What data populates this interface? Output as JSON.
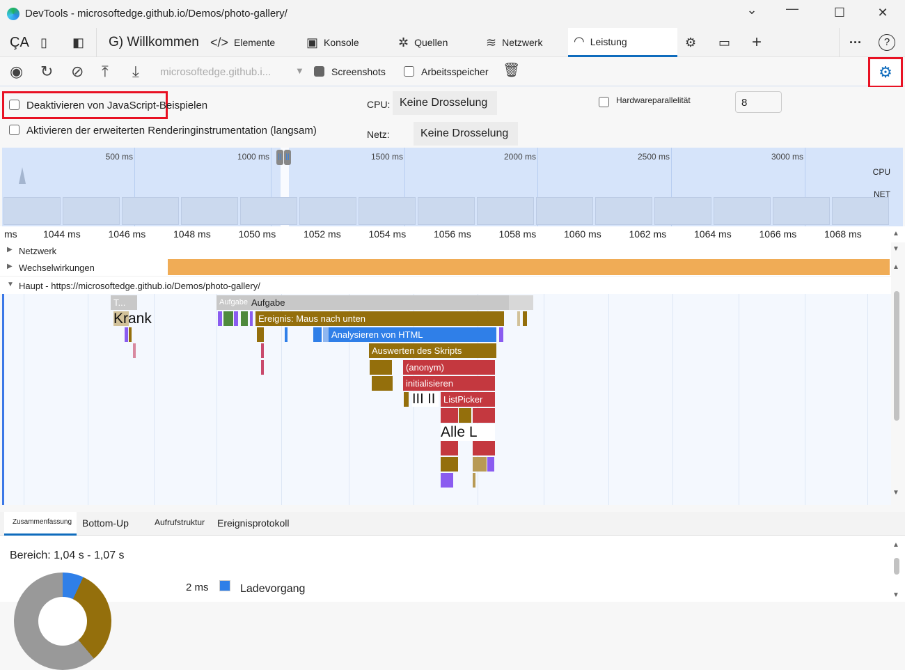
{
  "window": {
    "title": "DevTools - microsoftedge.github.io/Demos/photo-gallery/",
    "minimize": "⌄",
    "restore": "☐",
    "close": "✕",
    "chev": "⌄"
  },
  "tabs": {
    "ca": "ÇA",
    "welcome": "G) Willkommen",
    "items": [
      {
        "label": "Elemente",
        "icon": "code-icon"
      },
      {
        "label": "Konsole",
        "icon": "console-icon"
      },
      {
        "label": "Quellen",
        "icon": "bug-icon"
      },
      {
        "label": "Netzwerk",
        "icon": "wifi-icon"
      },
      {
        "label": "Leistung",
        "icon": "gauge-icon",
        "active": true
      }
    ],
    "more": "···",
    "help": "?"
  },
  "toolbar": {
    "url": "microsoftedge.github.i...",
    "screenshots": "Screenshots",
    "screenshots_checked": true,
    "memory": "Arbeitsspeicher",
    "memory_checked": false
  },
  "settings": {
    "disable_js": "Deaktivieren von JavaScript-Beispielen",
    "advanced_render": "Aktivieren der erweiterten Renderinginstrumentation (langsam)",
    "cpu_label": "CPU:",
    "cpu_value": "Keine Drosselung",
    "net_label": "Netz:",
    "net_value": "Keine Drosselung",
    "hw_label": "Hardwareparallelität",
    "hw_value": "8"
  },
  "overview": {
    "ticks": [
      "500 ms",
      "1000 ms",
      "1500 ms",
      "2000 ms",
      "2500 ms",
      "3000 ms"
    ],
    "cpu": "CPU",
    "net": "NET"
  },
  "ruler": {
    "ticks": [
      "ms",
      "1044 ms",
      "1046 ms",
      "1048 ms",
      "1050 ms",
      "1052 ms",
      "1054 ms",
      "1056 ms",
      "1058 ms",
      "1060 ms",
      "1062 ms",
      "1064 ms",
      "1066 ms",
      "1068 ms"
    ]
  },
  "tracks": {
    "network": "Netzwerk",
    "interactions": "Wechselwirkungen",
    "main": "Haupt - https://microsoftedge.github.io/Demos/photo-gallery/"
  },
  "flame": {
    "t": "T...",
    "task_small": "Aufgabe",
    "task": "Aufgabe",
    "krank": "Krank",
    "mousedown": "Ereignis: Maus nach unten",
    "parse_html": "Analysieren von HTML",
    "eval_script": "Auswerten des Skripts",
    "anon": "(anonym)",
    "init": "initialisieren",
    "bars": "III II",
    "listpicker": "ListPicker",
    "alle": "Alle L"
  },
  "colors": {
    "task": "#c8c8c8",
    "scripting": "#946f0c",
    "loading": "#2f7fe8",
    "function": "#c4383f",
    "rendering": "#8a5cf0",
    "painting": "#4e8a3d",
    "interactions": "#f0ac56",
    "accent": "#0f6cbd"
  },
  "bottom": {
    "tabs": [
      "Zusammenfassung",
      "Bottom-Up",
      "Aufrufstruktur",
      "Ereignisprotokoll"
    ],
    "range": "Bereich: 1,04 s - 1,07 s",
    "legend_value": "2 ms",
    "legend_label": "Ladevorgang"
  }
}
